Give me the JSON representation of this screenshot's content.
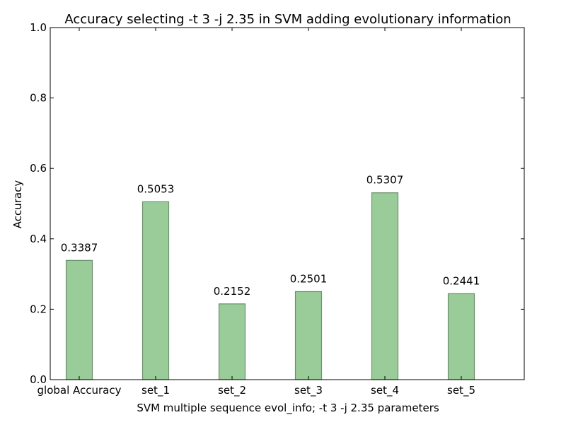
{
  "chart_data": {
    "type": "bar",
    "title": "Accuracy selecting -t 3 -j 2.35 in SVM adding evolutionary information",
    "xlabel": "SVM multiple sequence evol_info; -t 3 -j 2.35 parameters",
    "ylabel": "Accuracy",
    "categories": [
      "global Accuracy",
      "set_1",
      "set_2",
      "set_3",
      "set_4",
      "set_5"
    ],
    "values": [
      0.3387,
      0.5053,
      0.2152,
      0.2501,
      0.5307,
      0.2441
    ],
    "value_labels": [
      "0.3387",
      "0.5053",
      "0.2152",
      "0.2501",
      "0.5307",
      "0.2441"
    ],
    "ylim": [
      0.0,
      1.0
    ],
    "yticks": [
      "0.0",
      "0.2",
      "0.4",
      "0.6",
      "0.8",
      "1.0"
    ],
    "grid": false,
    "bar_color": "#99cc99",
    "bar_edge_color": "#6e8f6e"
  }
}
